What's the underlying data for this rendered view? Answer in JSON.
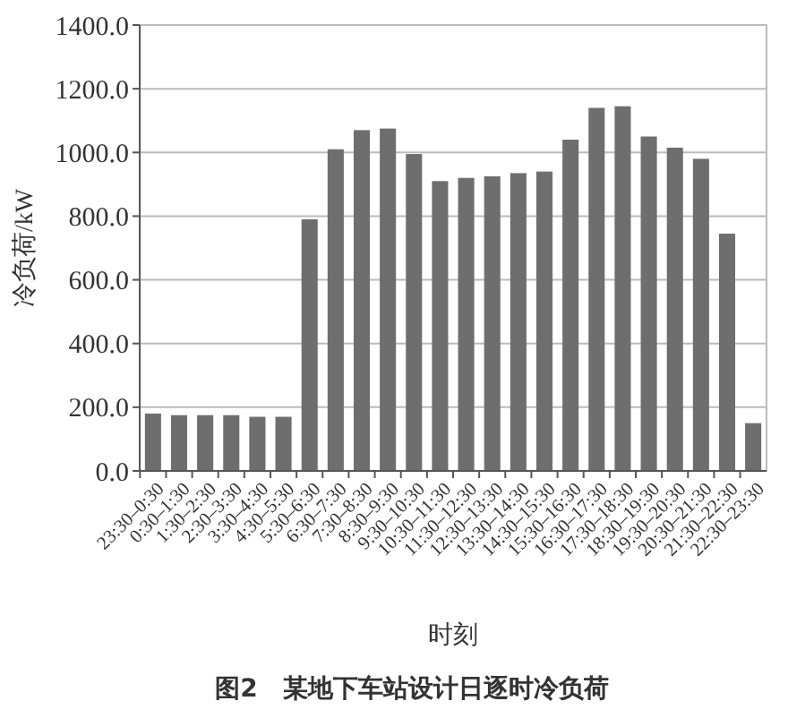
{
  "chart_data": {
    "type": "bar",
    "title": "图2　某地下车站设计日逐时冷负荷",
    "xlabel": "时刻",
    "ylabel": "冷负荷/kW",
    "categories": [
      "23:30–0:30",
      "0:30–1:30",
      "1:30–2:30",
      "2:30–3:30",
      "3:30–4:30",
      "4:30–5:30",
      "5:30–6:30",
      "6:30–7:30",
      "7:30–8:30",
      "8:30–9:30",
      "9:30–10:30",
      "10:30–11:30",
      "11:30–12:30",
      "12:30–13:30",
      "13:30–14:30",
      "14:30–15:30",
      "15:30–16:30",
      "16:30–17:30",
      "17:30–18:30",
      "18:30–19:30",
      "19:30–20:30",
      "20:30–21:30",
      "21:30–22:30",
      "22:30–23:30"
    ],
    "values": [
      180,
      175,
      175,
      175,
      170,
      170,
      790,
      1010,
      1070,
      1075,
      995,
      910,
      920,
      925,
      935,
      940,
      1040,
      1140,
      1145,
      1050,
      1015,
      980,
      745,
      150
    ],
    "color": "#6e6e6e",
    "ylim": [
      0,
      1400
    ],
    "yticks": [
      {
        "value": 0,
        "label": "0.0"
      },
      {
        "value": 200,
        "label": "200.0"
      },
      {
        "value": 400,
        "label": "400.0"
      },
      {
        "value": 600,
        "label": "600.0"
      },
      {
        "value": 800,
        "label": "800.0"
      },
      {
        "value": 1000,
        "label": "1000.0"
      },
      {
        "value": 1200,
        "label": "1200.0"
      },
      {
        "value": 1400,
        "label": "1400.0"
      }
    ],
    "grid": "y"
  }
}
